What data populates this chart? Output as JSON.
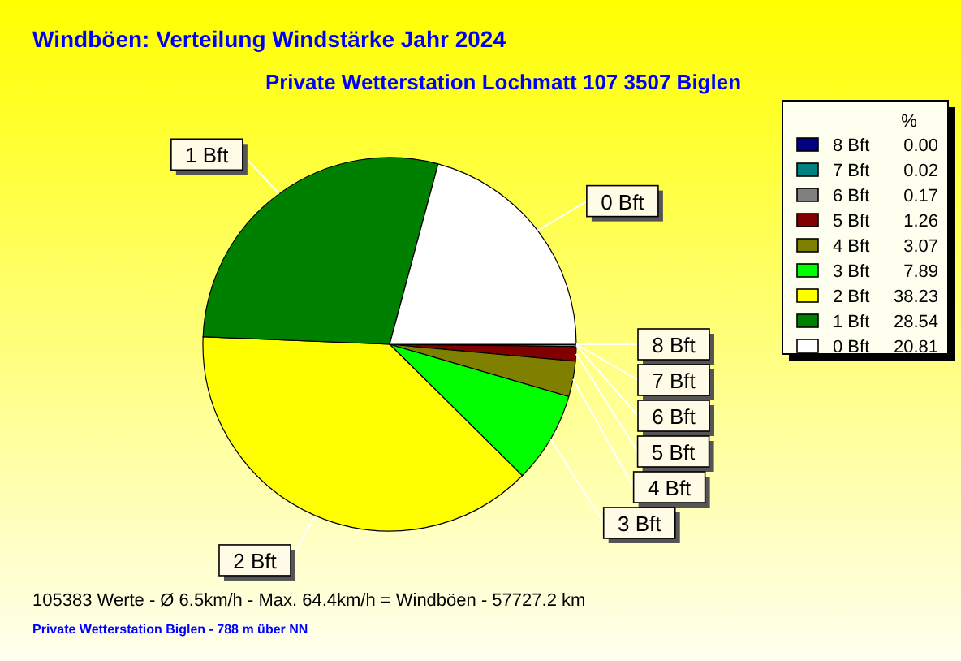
{
  "chart_data": {
    "type": "pie",
    "title": "Windböen: Verteilung Windstärke  Jahr 2024",
    "subtitle": "Private Wetterstation Lochmatt 107 3507 Biglen",
    "categories": [
      "8 Bft",
      "7 Bft",
      "6 Bft",
      "5 Bft",
      "4 Bft",
      "3 Bft",
      "2 Bft",
      "1 Bft",
      "0 Bft"
    ],
    "values": [
      0.0,
      0.02,
      0.17,
      1.26,
      3.07,
      7.89,
      38.23,
      28.54,
      20.81
    ],
    "colors": [
      "#000080",
      "#008080",
      "#808080",
      "#800000",
      "#808000",
      "#00ff00",
      "#ffff00",
      "#008000",
      "#ffffff"
    ],
    "value_labels": [
      "0.00",
      "0.02",
      "0.17",
      "1.26",
      "3.07",
      "7.89",
      "38.23",
      "28.54",
      "20.81"
    ],
    "legend": "right",
    "legend_title": "%",
    "data_labels": true,
    "annotations": [
      "105383 Werte   -   Ø 6.5km/h  -  Max. 64.4km/h = Windböen   -   57727.2 km",
      "Private Wetterstation Biglen  -  788 m über NN"
    ]
  }
}
